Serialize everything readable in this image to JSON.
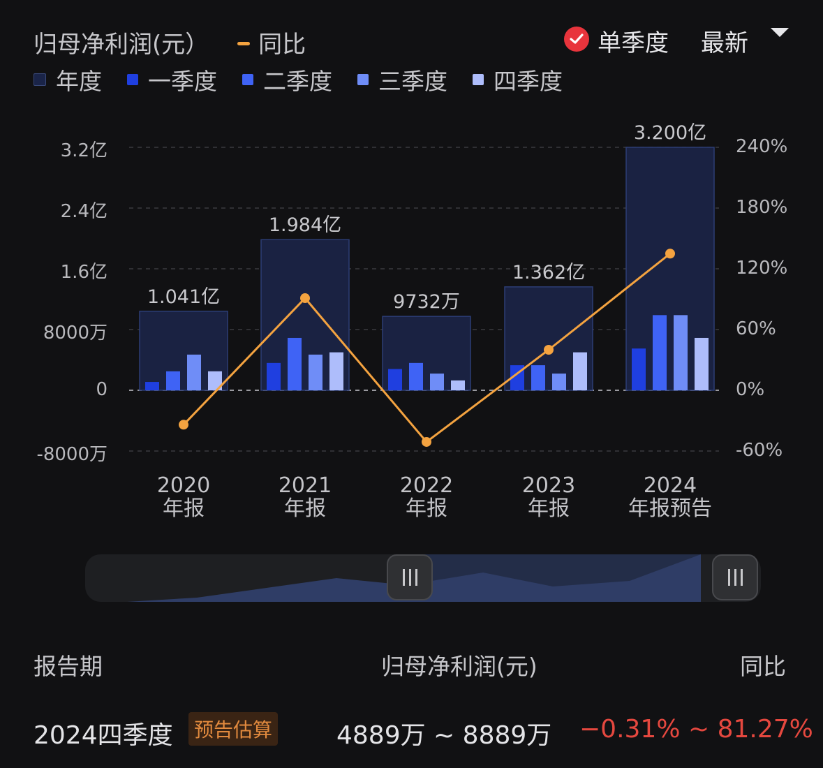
{
  "header": {
    "title": "归母净利润(元）",
    "yoy_label": "同比",
    "quarterly_label": "单季度",
    "latest_label": "最新"
  },
  "legend": [
    {
      "label": "年度",
      "color": "#1a2448"
    },
    {
      "label": "一季度",
      "color": "#1f3fe0"
    },
    {
      "label": "二季度",
      "color": "#3f63f5"
    },
    {
      "label": "三季度",
      "color": "#6f8df7"
    },
    {
      "label": "四季度",
      "color": "#aebdfb"
    }
  ],
  "chart_data": {
    "type": "bar",
    "categories": [
      "2020\n年报",
      "2021\n年报",
      "2022\n年报",
      "2023\n年报",
      "2024\n年报预告"
    ],
    "category_year": [
      "2020",
      "2021",
      "2022",
      "2023",
      "2024"
    ],
    "category_kind": [
      "年报",
      "年报",
      "年报",
      "年报",
      "年报预告"
    ],
    "annual": [
      1.041,
      1.984,
      0.9732,
      1.362,
      3.2
    ],
    "annual_labels": [
      "1.041亿",
      "1.984亿",
      "9732万",
      "1.362亿",
      "3.200亿"
    ],
    "series": [
      {
        "name": "一季度",
        "values": [
          0.11,
          0.36,
          0.28,
          0.33,
          0.55
        ]
      },
      {
        "name": "二季度",
        "values": [
          0.25,
          0.69,
          0.36,
          0.33,
          0.99
        ]
      },
      {
        "name": "三季度",
        "values": [
          0.47,
          0.47,
          0.22,
          0.22,
          0.99
        ]
      },
      {
        "name": "四季度",
        "values": [
          0.25,
          0.5,
          0.13,
          0.5,
          0.69
        ]
      }
    ],
    "yoy": [
      -34,
      91,
      -51,
      40,
      135
    ],
    "ylabel_ticks": [
      "3.2亿",
      "2.4亿",
      "1.6亿",
      "8000万",
      "0",
      "-8000万"
    ],
    "yright_ticks": [
      "240%",
      "180%",
      "120%",
      "60%",
      "0%",
      "-60%"
    ],
    "ylim": [
      -0.8,
      3.2
    ],
    "y2lim": [
      -60,
      240
    ],
    "grid": true
  },
  "table": {
    "headers": [
      "报告期",
      "归母净利润(元)",
      "同比"
    ],
    "row": {
      "period": "2024四季度",
      "badge": "预告估算",
      "value": "4889万 ~ 8889万",
      "yoy": "−0.31% ~ 81.27%"
    }
  }
}
